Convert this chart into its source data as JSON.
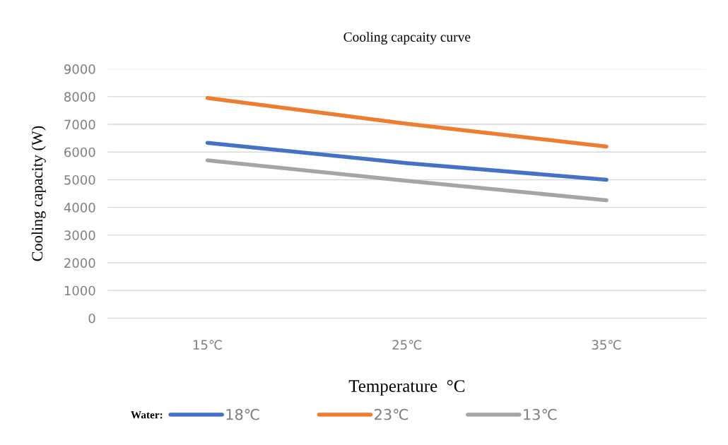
{
  "chart_data": {
    "type": "line",
    "title": "Cooling capcaity curve",
    "xlabel": "Temperature  °C",
    "ylabel": "Cooling capacity (W)",
    "legend_title": "Water:",
    "categories": [
      "15℃",
      "25℃",
      "35℃"
    ],
    "series": [
      {
        "name": "18℃",
        "color": "#4472c4",
        "values": [
          6330,
          5600,
          5000
        ]
      },
      {
        "name": "23℃",
        "color": "#ed7d31",
        "values": [
          7950,
          7020,
          6200
        ]
      },
      {
        "name": "13℃",
        "color": "#a5a5a5",
        "values": [
          5700,
          4960,
          4260
        ]
      }
    ],
    "ylim": [
      0,
      9000
    ],
    "yticks": [
      0,
      1000,
      2000,
      3000,
      4000,
      5000,
      6000,
      7000,
      8000,
      9000
    ],
    "grid": "y",
    "legend": "bottom",
    "marker": "none",
    "line_style": "solid"
  }
}
